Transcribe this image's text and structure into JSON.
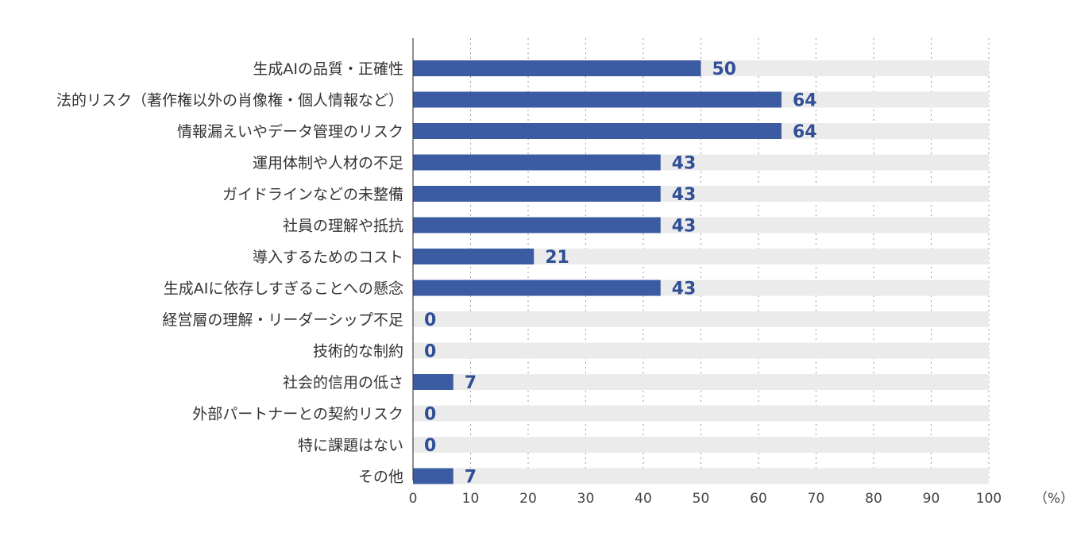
{
  "chart_data": {
    "type": "bar",
    "orientation": "horizontal",
    "categories": [
      "生成AIの品質・正確性",
      "法的リスク（著作権以外の肖像権・個人情報など）",
      "情報漏えいやデータ管理のリスク",
      "運用体制や人材の不足",
      "ガイドラインなどの未整備",
      "社員の理解や抵抗",
      "導入するためのコスト",
      "生成AIに依存しすぎることへの懸念",
      "経営層の理解・リーダーシップ不足",
      "技術的な制約",
      "社会的信用の低さ",
      "外部パートナーとの契約リスク",
      "特に課題はない",
      "その他"
    ],
    "values": [
      50,
      64,
      64,
      43,
      43,
      43,
      21,
      43,
      0,
      0,
      7,
      0,
      0,
      7
    ],
    "value_labels": [
      "50",
      "64",
      "64",
      "43",
      "43",
      "43",
      "21",
      "43",
      "0",
      "0",
      "7",
      "0",
      "0",
      "7"
    ],
    "xlim": [
      0,
      100
    ],
    "x_ticks": [
      0,
      10,
      20,
      30,
      40,
      50,
      60,
      70,
      80,
      90,
      100
    ],
    "x_tick_labels": [
      "0",
      "10",
      "20",
      "30",
      "40",
      "50",
      "60",
      "70",
      "80",
      "90",
      "100"
    ],
    "x_unit": "（%）",
    "grid": true,
    "colors": {
      "bar": "#3b5ba3",
      "background_bar": "#ebebeb",
      "value_label": "#2f4f96",
      "grid": "#9a9a9a"
    }
  }
}
